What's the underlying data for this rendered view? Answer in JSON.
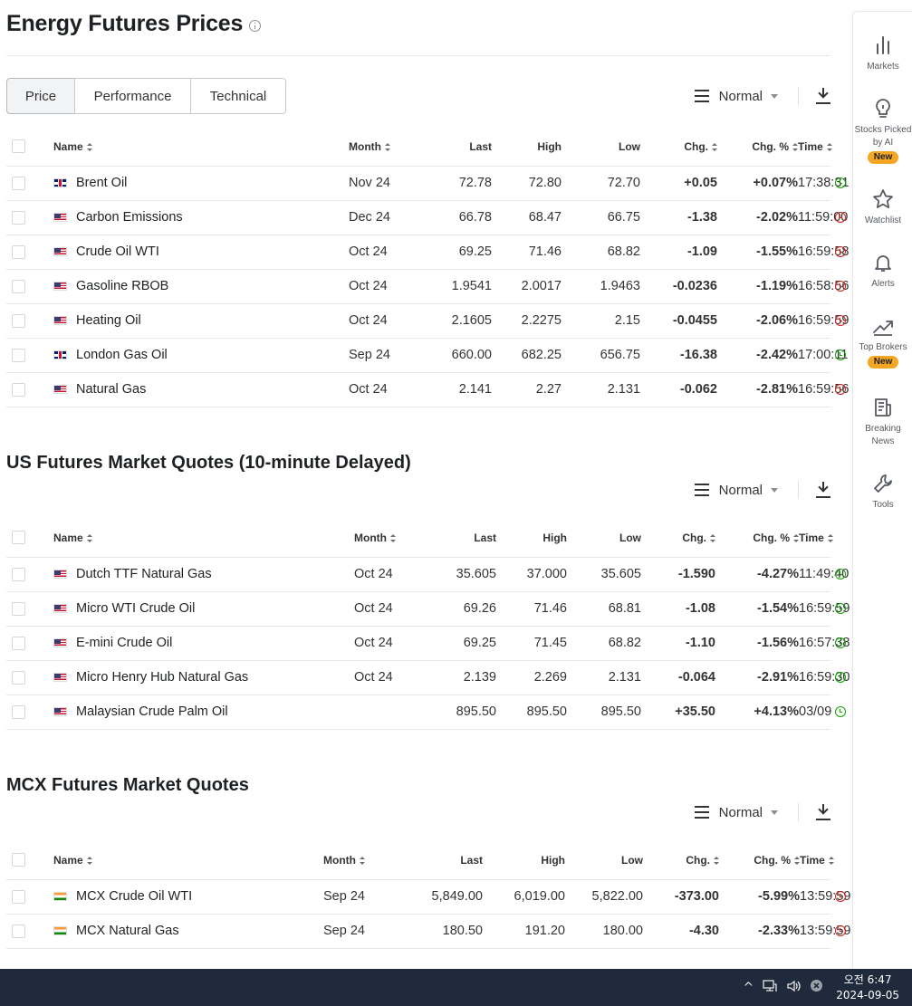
{
  "page": {
    "title": "Energy Futures Prices",
    "tabs": [
      {
        "label": "Price",
        "active": true
      },
      {
        "label": "Performance",
        "active": false
      },
      {
        "label": "Technical",
        "active": false
      }
    ],
    "view_label": "Normal"
  },
  "energy": {
    "headers": [
      "Name",
      "Month",
      "Last",
      "High",
      "Low",
      "Chg.",
      "Chg. %",
      "Time"
    ],
    "rows": [
      {
        "flag": "uk",
        "name": "Brent Oil",
        "month": "Nov 24",
        "last": "72.78",
        "high": "72.80",
        "low": "72.70",
        "chg": "+0.05",
        "chgp": "+0.07%",
        "dir": "pos",
        "time": "17:38:31",
        "status": "open"
      },
      {
        "flag": "us",
        "name": "Carbon Emissions",
        "month": "Dec 24",
        "last": "66.78",
        "high": "68.47",
        "low": "66.75",
        "chg": "-1.38",
        "chgp": "-2.02%",
        "dir": "neg",
        "time": "11:59:00",
        "status": "closed"
      },
      {
        "flag": "us",
        "name": "Crude Oil WTI",
        "month": "Oct 24",
        "last": "69.25",
        "high": "71.46",
        "low": "68.82",
        "chg": "-1.09",
        "chgp": "-1.55%",
        "dir": "neg",
        "time": "16:59:58",
        "status": "closed"
      },
      {
        "flag": "us",
        "name": "Gasoline RBOB",
        "month": "Oct 24",
        "last": "1.9541",
        "high": "2.0017",
        "low": "1.9463",
        "chg": "-0.0236",
        "chgp": "-1.19%",
        "dir": "neg",
        "time": "16:58:56",
        "status": "closed"
      },
      {
        "flag": "us",
        "name": "Heating Oil",
        "month": "Oct 24",
        "last": "2.1605",
        "high": "2.2275",
        "low": "2.15",
        "chg": "-0.0455",
        "chgp": "-2.06%",
        "dir": "neg",
        "time": "16:59:59",
        "status": "closed"
      },
      {
        "flag": "uk",
        "name": "London Gas Oil",
        "month": "Sep 24",
        "last": "660.00",
        "high": "682.25",
        "low": "656.75",
        "chg": "-16.38",
        "chgp": "-2.42%",
        "dir": "neg",
        "time": "17:00:11",
        "status": "open"
      },
      {
        "flag": "us",
        "name": "Natural Gas",
        "month": "Oct 24",
        "last": "2.141",
        "high": "2.27",
        "low": "2.131",
        "chg": "-0.062",
        "chgp": "-2.81%",
        "dir": "neg",
        "time": "16:59:56",
        "status": "closed"
      }
    ]
  },
  "us": {
    "title": "US Futures Market Quotes (10-minute Delayed)",
    "view_label": "Normal",
    "headers": [
      "Name",
      "Month",
      "Last",
      "High",
      "Low",
      "Chg.",
      "Chg. %",
      "Time"
    ],
    "rows": [
      {
        "flag": "us",
        "name": "Dutch TTF Natural Gas",
        "month": "Oct 24",
        "last": "35.605",
        "high": "37.000",
        "low": "35.605",
        "chg": "-1.590",
        "chgp": "-4.27%",
        "dir": "neg",
        "time": "11:49:40",
        "status": "open"
      },
      {
        "flag": "us",
        "name": "Micro WTI Crude Oil",
        "month": "Oct 24",
        "last": "69.26",
        "high": "71.46",
        "low": "68.81",
        "chg": "-1.08",
        "chgp": "-1.54%",
        "dir": "neg",
        "time": "16:59:59",
        "status": "open"
      },
      {
        "flag": "us",
        "name": "E-mini Crude Oil",
        "month": "Oct 24",
        "last": "69.25",
        "high": "71.45",
        "low": "68.82",
        "chg": "-1.10",
        "chgp": "-1.56%",
        "dir": "neg",
        "time": "16:57:38",
        "status": "open"
      },
      {
        "flag": "us",
        "name": "Micro Henry Hub Natural Gas",
        "month": "Oct 24",
        "last": "2.139",
        "high": "2.269",
        "low": "2.131",
        "chg": "-0.064",
        "chgp": "-2.91%",
        "dir": "neg",
        "time": "16:59:30",
        "status": "open"
      },
      {
        "flag": "us",
        "name": "Malaysian Crude Palm Oil",
        "month": "",
        "last": "895.50",
        "high": "895.50",
        "low": "895.50",
        "chg": "+35.50",
        "chgp": "+4.13%",
        "dir": "pos",
        "time": "03/09",
        "status": "open"
      }
    ]
  },
  "mcx": {
    "title": "MCX Futures Market Quotes",
    "view_label": "Normal",
    "headers": [
      "Name",
      "Month",
      "Last",
      "High",
      "Low",
      "Chg.",
      "Chg. %",
      "Time"
    ],
    "rows": [
      {
        "flag": "in",
        "name": "MCX Crude Oil WTI",
        "month": "Sep 24",
        "last": "5,849.00",
        "high": "6,019.00",
        "low": "5,822.00",
        "chg": "-373.00",
        "chgp": "-5.99%",
        "dir": "neg",
        "time": "13:59:59",
        "status": "closed"
      },
      {
        "flag": "in",
        "name": "MCX Natural Gas",
        "month": "Sep 24",
        "last": "180.50",
        "high": "191.20",
        "low": "180.00",
        "chg": "-4.30",
        "chgp": "-2.33%",
        "dir": "neg",
        "time": "13:59:59",
        "status": "closed"
      }
    ]
  },
  "sidebar": {
    "markets": "Markets",
    "stocks_ai": "Stocks Picked by AI",
    "new_badge": "New",
    "watchlist": "Watchlist",
    "alerts": "Alerts",
    "top_brokers": "Top Brokers",
    "breaking_news": "Breaking News",
    "tools": "Tools"
  },
  "taskbar": {
    "time": "오전 6:47",
    "date": "2024-09-05"
  },
  "colors": {
    "positive": "#007c32",
    "negative": "#d91e18",
    "badge": "#f5a623",
    "taskbar": "#1f2a3c"
  }
}
